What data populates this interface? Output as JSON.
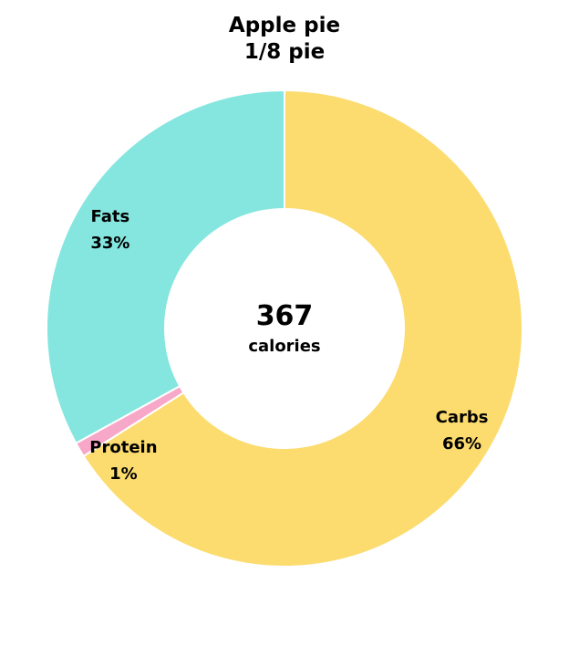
{
  "chart_data": {
    "type": "pie",
    "title": "Apple pie",
    "subtitle": "1/8 pie",
    "center": {
      "value": "367",
      "unit": "calories"
    },
    "slices": [
      {
        "label": "Carbs",
        "value": 66,
        "pct_label": "66%",
        "color": "#fcdc6f"
      },
      {
        "label": "Protein",
        "value": 1,
        "pct_label": "1%",
        "color": "#f7a8c8"
      },
      {
        "label": "Fats",
        "value": 33,
        "pct_label": "33%",
        "color": "#84e6df"
      }
    ]
  }
}
